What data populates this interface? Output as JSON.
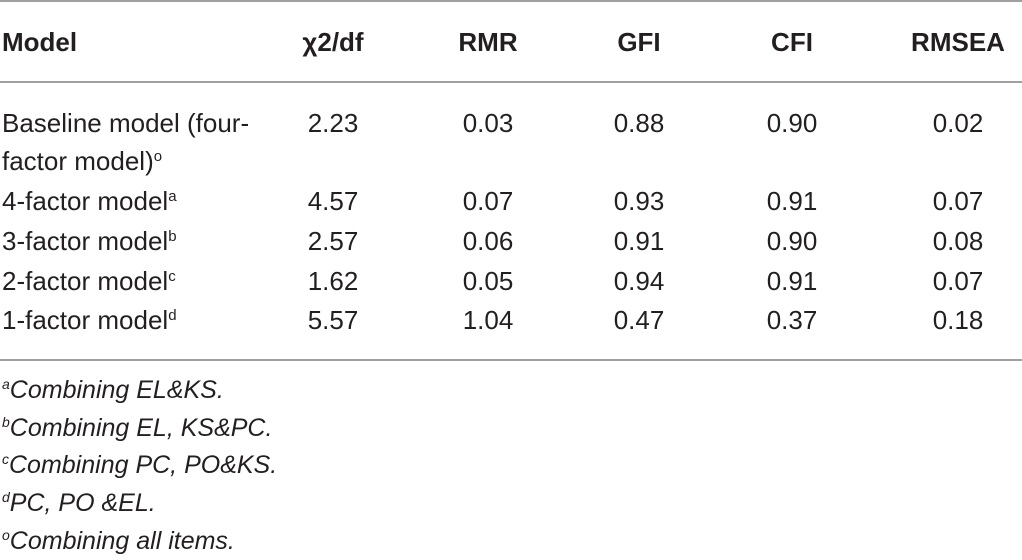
{
  "table": {
    "header": [
      "Model",
      "χ2/df",
      "RMR",
      "GFI",
      "CFI",
      "RMSEA"
    ],
    "rows": [
      {
        "model": "Baseline model (four-factor model)",
        "note": "o",
        "values": [
          "2.23",
          "0.03",
          "0.88",
          "0.90",
          "0.02"
        ]
      },
      {
        "model": "4-factor model",
        "note": "a",
        "values": [
          "4.57",
          "0.07",
          "0.93",
          "0.91",
          "0.07"
        ]
      },
      {
        "model": "3-factor model",
        "note": "b",
        "values": [
          "2.57",
          "0.06",
          "0.91",
          "0.90",
          "0.08"
        ]
      },
      {
        "model": "2-factor model",
        "note": "c",
        "values": [
          "1.62",
          "0.05",
          "0.94",
          "0.91",
          "0.07"
        ]
      },
      {
        "model": "1-factor model",
        "note": "d",
        "values": [
          "5.57",
          "1.04",
          "0.47",
          "0.37",
          "0.18"
        ]
      }
    ]
  },
  "footnotes": [
    {
      "mark": "a",
      "text": "Combining EL&KS."
    },
    {
      "mark": "b",
      "text": "Combining EL, KS&PC."
    },
    {
      "mark": "c",
      "text": "Combining PC, PO&KS."
    },
    {
      "mark": "d",
      "text": "PC, PO &EL."
    },
    {
      "mark": "o",
      "text": "Combining all items."
    }
  ]
}
